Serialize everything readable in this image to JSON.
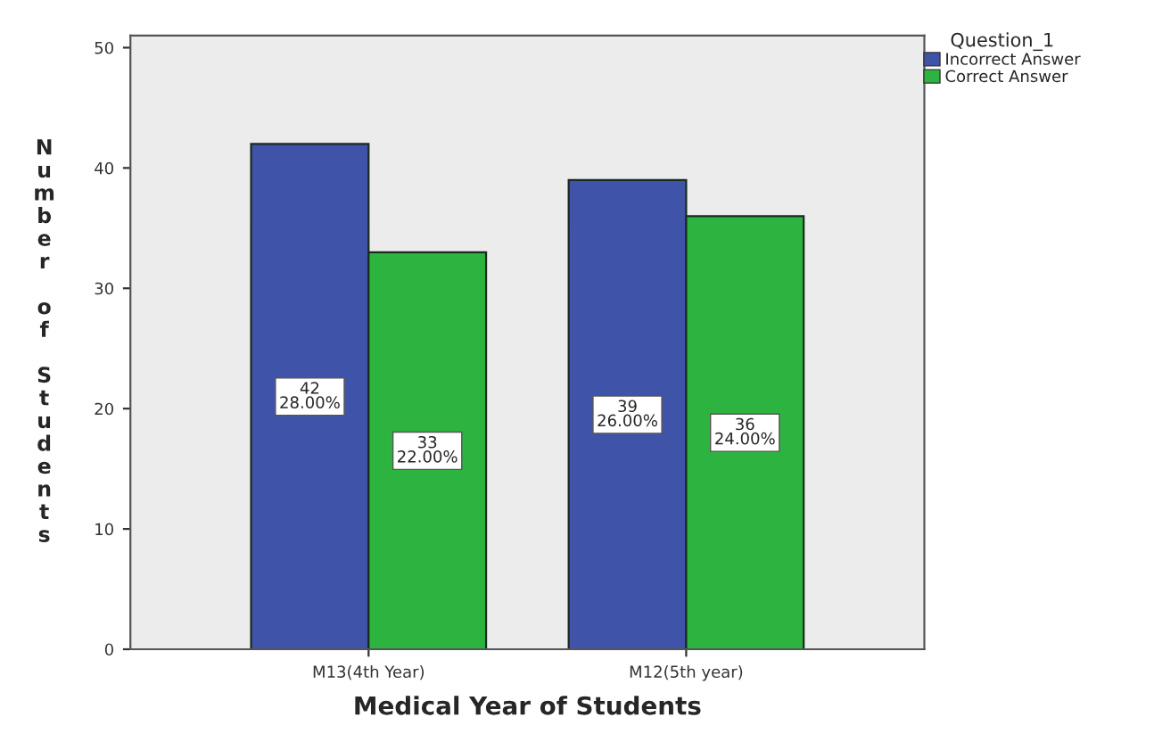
{
  "chart_data": {
    "type": "bar",
    "xlabel": "Medical Year of Students",
    "ylabel": "Number of Students",
    "legend_title": "Question_1",
    "categories": [
      "M13(4th Year)",
      "M12(5th year)"
    ],
    "series": [
      {
        "name": "Incorrect Answer",
        "color": "#3f54a8",
        "values": [
          42,
          39
        ],
        "value_labels": [
          "42\n28.00%",
          "39\n26.00%"
        ]
      },
      {
        "name": "Correct Answer",
        "color": "#2db440",
        "values": [
          33,
          36
        ],
        "value_labels": [
          "33\n22.00%",
          "36\n24.00%"
        ]
      }
    ],
    "ylim": [
      0,
      51
    ],
    "yticks": [
      0,
      10,
      20,
      30,
      40,
      50
    ],
    "grid": false,
    "legend": "top right"
  }
}
